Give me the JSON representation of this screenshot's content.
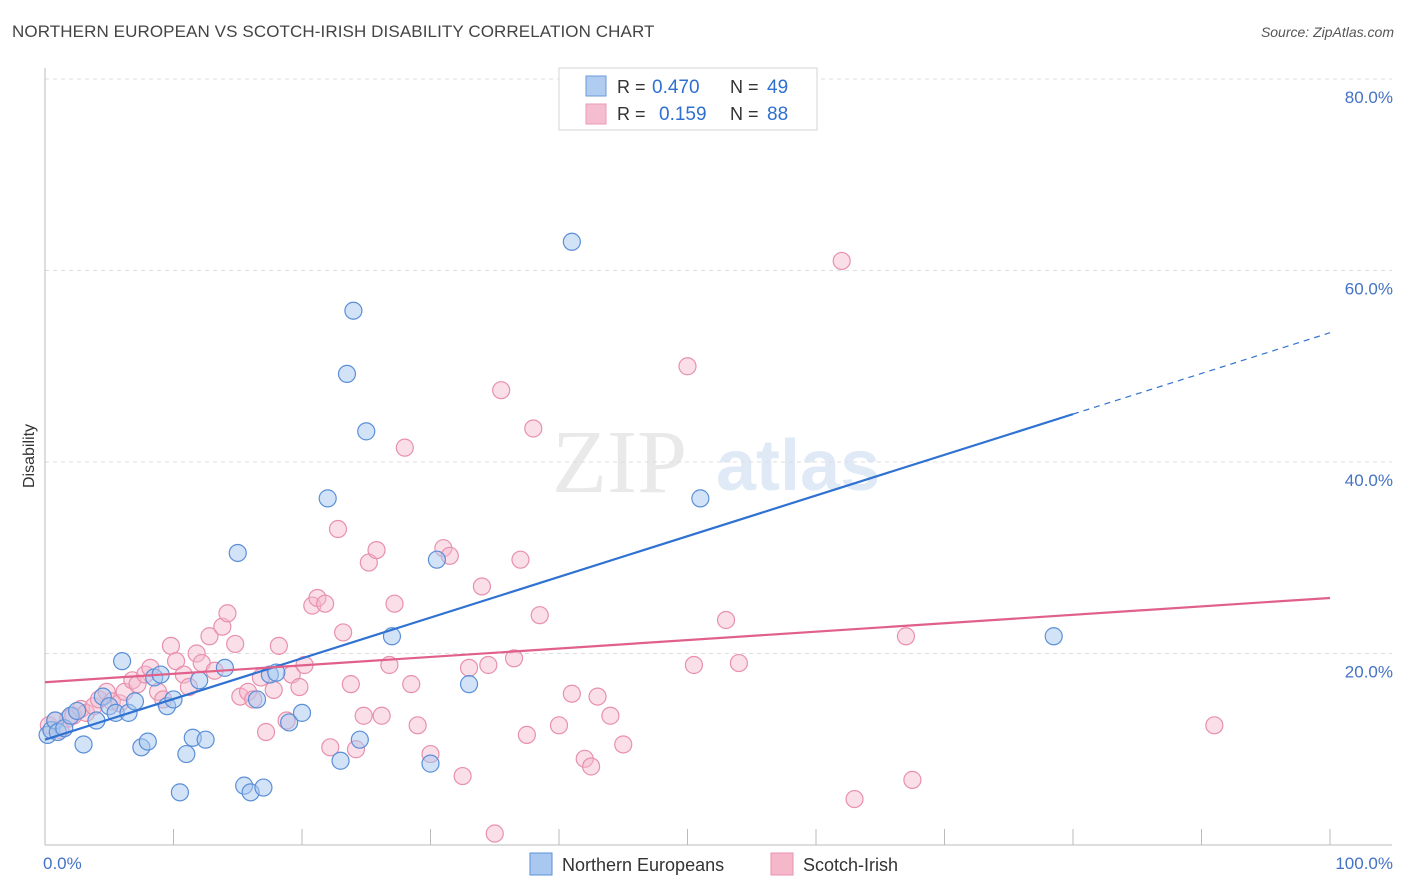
{
  "title": "NORTHERN EUROPEAN VS SCOTCH-IRISH DISABILITY CORRELATION CHART",
  "source": "Source: ZipAtlas.com",
  "watermark": {
    "zip": "ZIP",
    "atlas": "atlas"
  },
  "colors": {
    "blue_fill": "#a8c8f0",
    "blue_stroke": "#5b8fd8",
    "blue_line": "#2f72d2",
    "pink_fill": "#f5b8cb",
    "pink_stroke": "#e890ad",
    "pink_line": "#e0608a",
    "grid": "#dddddd",
    "tick_text": "#4472c4"
  },
  "legend": {
    "rows": [
      {
        "series": "Northern Europeans",
        "r_label": "R =",
        "r_value": "0.470",
        "n_label": "N =",
        "n_value": "49"
      },
      {
        "series": "Scotch-Irish",
        "r_label": "R =",
        "r_value": "0.159",
        "n_label": "N =",
        "n_value": "88"
      }
    ]
  },
  "bottom_legend": [
    "Northern Europeans",
    "Scotch-Irish"
  ],
  "chart_data": {
    "type": "scatter",
    "title": "NORTHERN EUROPEAN VS SCOTCH-IRISH DISABILITY CORRELATION CHART",
    "xlabel": "",
    "ylabel": "Disability",
    "xlim": [
      0,
      100
    ],
    "ylim": [
      0,
      80
    ],
    "x_tick_labels": [
      "0.0%",
      "100.0%"
    ],
    "y_ticks": [
      20,
      40,
      60,
      80
    ],
    "y_tick_labels": [
      "20.0%",
      "40.0%",
      "60.0%",
      "80.0%"
    ],
    "grid": true,
    "series": [
      {
        "name": "Northern Europeans",
        "r": 0.47,
        "n": 49,
        "trend": {
          "x0": 0,
          "y0": 11.0,
          "x1": 80,
          "y1": 45.0,
          "dashed_to_x": 100,
          "dashed_to_y": 53.5
        },
        "points": [
          [
            0.2,
            11.5
          ],
          [
            0.5,
            12.0
          ],
          [
            0.8,
            13.0
          ],
          [
            1.0,
            11.8
          ],
          [
            1.5,
            12.2
          ],
          [
            2.0,
            13.5
          ],
          [
            2.5,
            14.0
          ],
          [
            3.0,
            10.5
          ],
          [
            4.0,
            13.0
          ],
          [
            4.5,
            15.5
          ],
          [
            5.0,
            14.5
          ],
          [
            5.5,
            13.8
          ],
          [
            6.0,
            19.2
          ],
          [
            6.5,
            13.8
          ],
          [
            7.0,
            15.0
          ],
          [
            7.5,
            10.2
          ],
          [
            8.0,
            10.8
          ],
          [
            8.5,
            17.5
          ],
          [
            9.0,
            17.8
          ],
          [
            9.5,
            14.5
          ],
          [
            10.0,
            15.2
          ],
          [
            10.5,
            5.5
          ],
          [
            11.0,
            9.5
          ],
          [
            11.5,
            11.2
          ],
          [
            12.0,
            17.2
          ],
          [
            12.5,
            11.0
          ],
          [
            14.0,
            18.5
          ],
          [
            15.0,
            30.5
          ],
          [
            15.5,
            6.2
          ],
          [
            16.0,
            5.5
          ],
          [
            16.5,
            15.2
          ],
          [
            17.0,
            6.0
          ],
          [
            17.5,
            17.8
          ],
          [
            18.0,
            18.0
          ],
          [
            19.0,
            12.8
          ],
          [
            20.0,
            13.8
          ],
          [
            22.0,
            36.2
          ],
          [
            23.0,
            8.8
          ],
          [
            23.5,
            49.2
          ],
          [
            24.0,
            55.8
          ],
          [
            24.5,
            11.0
          ],
          [
            25.0,
            43.2
          ],
          [
            27.0,
            21.8
          ],
          [
            30.0,
            8.5
          ],
          [
            30.5,
            29.8
          ],
          [
            33.0,
            16.8
          ],
          [
            41.0,
            63.0
          ],
          [
            51.0,
            36.2
          ],
          [
            78.5,
            21.8
          ]
        ]
      },
      {
        "name": "Scotch-Irish",
        "r": 0.159,
        "n": 88,
        "trend": {
          "x0": 0,
          "y0": 17.0,
          "x1": 100,
          "y1": 25.8
        },
        "points": [
          [
            0.3,
            12.5
          ],
          [
            0.8,
            13.0
          ],
          [
            1.2,
            12.0
          ],
          [
            1.8,
            13.2
          ],
          [
            2.2,
            13.5
          ],
          [
            2.8,
            14.2
          ],
          [
            3.2,
            13.8
          ],
          [
            3.8,
            14.5
          ],
          [
            4.2,
            15.2
          ],
          [
            4.8,
            16.0
          ],
          [
            5.2,
            15.0
          ],
          [
            5.8,
            14.8
          ],
          [
            6.2,
            16.0
          ],
          [
            6.8,
            17.2
          ],
          [
            7.2,
            16.8
          ],
          [
            7.8,
            17.8
          ],
          [
            8.2,
            18.5
          ],
          [
            8.8,
            16.0
          ],
          [
            9.2,
            15.2
          ],
          [
            9.8,
            20.8
          ],
          [
            10.2,
            19.2
          ],
          [
            10.8,
            17.8
          ],
          [
            11.2,
            16.5
          ],
          [
            11.8,
            20.0
          ],
          [
            12.2,
            19.0
          ],
          [
            12.8,
            21.8
          ],
          [
            13.2,
            18.2
          ],
          [
            13.8,
            22.8
          ],
          [
            14.2,
            24.2
          ],
          [
            14.8,
            21.0
          ],
          [
            15.2,
            15.5
          ],
          [
            15.8,
            16.0
          ],
          [
            16.2,
            15.2
          ],
          [
            16.8,
            17.5
          ],
          [
            17.2,
            11.8
          ],
          [
            17.8,
            16.2
          ],
          [
            18.2,
            20.8
          ],
          [
            18.8,
            13.0
          ],
          [
            19.2,
            17.8
          ],
          [
            19.8,
            16.5
          ],
          [
            20.2,
            18.8
          ],
          [
            20.8,
            25.0
          ],
          [
            21.2,
            25.8
          ],
          [
            21.8,
            25.2
          ],
          [
            22.2,
            10.2
          ],
          [
            22.8,
            33.0
          ],
          [
            23.2,
            22.2
          ],
          [
            23.8,
            16.8
          ],
          [
            24.2,
            10.0
          ],
          [
            24.8,
            13.5
          ],
          [
            25.2,
            29.5
          ],
          [
            25.8,
            30.8
          ],
          [
            26.2,
            13.5
          ],
          [
            26.8,
            18.8
          ],
          [
            27.2,
            25.2
          ],
          [
            28.0,
            41.5
          ],
          [
            28.5,
            16.8
          ],
          [
            29.0,
            12.5
          ],
          [
            30.0,
            9.5
          ],
          [
            31.0,
            31.0
          ],
          [
            31.5,
            30.2
          ],
          [
            32.5,
            7.2
          ],
          [
            33.0,
            18.5
          ],
          [
            34.0,
            27.0
          ],
          [
            34.5,
            18.8
          ],
          [
            35.0,
            1.2
          ],
          [
            35.5,
            47.5
          ],
          [
            36.5,
            19.5
          ],
          [
            37.0,
            29.8
          ],
          [
            37.5,
            11.5
          ],
          [
            38.0,
            43.5
          ],
          [
            38.5,
            24.0
          ],
          [
            40.0,
            12.5
          ],
          [
            41.0,
            15.8
          ],
          [
            42.0,
            9.0
          ],
          [
            43.0,
            15.5
          ],
          [
            44.0,
            13.5
          ],
          [
            45.0,
            10.5
          ],
          [
            50.0,
            50.0
          ],
          [
            50.5,
            18.8
          ],
          [
            53.0,
            23.5
          ],
          [
            54.0,
            19.0
          ],
          [
            62.0,
            61.0
          ],
          [
            63.0,
            4.8
          ],
          [
            67.0,
            21.8
          ],
          [
            67.5,
            6.8
          ],
          [
            91.0,
            12.5
          ],
          [
            42.5,
            8.2
          ]
        ]
      }
    ]
  }
}
